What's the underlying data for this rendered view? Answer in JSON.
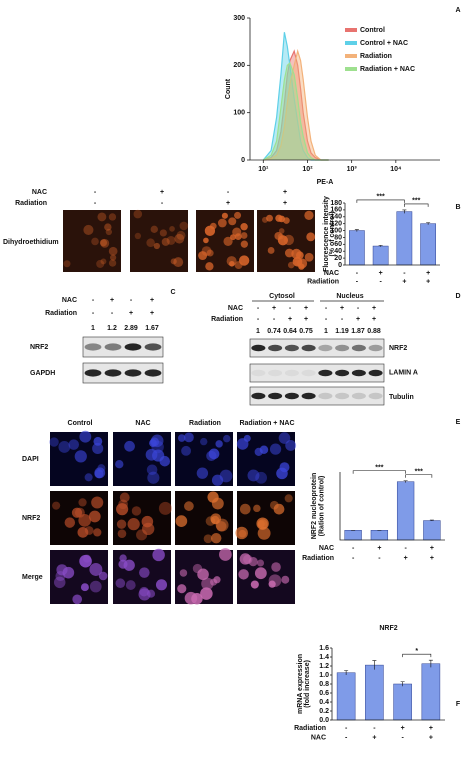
{
  "chart_data": [
    {
      "type": "area",
      "xlabel": "PE-A",
      "ylabel": "Count",
      "log_x": true,
      "x": [
        10,
        15,
        20,
        25,
        30,
        35,
        40,
        50,
        60,
        70,
        80,
        100,
        120,
        150,
        200,
        300
      ],
      "series": [
        {
          "name": "Control",
          "color": "#e8736f",
          "values": [
            0,
            5,
            20,
            60,
            120,
            180,
            210,
            230,
            200,
            150,
            100,
            40,
            15,
            5,
            0,
            0
          ]
        },
        {
          "name": "Control + NAC",
          "color": "#5ed0e8",
          "values": [
            0,
            20,
            90,
            180,
            270,
            240,
            200,
            130,
            80,
            40,
            20,
            5,
            0,
            0,
            0,
            0
          ]
        },
        {
          "name": "Radiation",
          "color": "#f3b27a",
          "values": [
            0,
            3,
            10,
            30,
            70,
            120,
            160,
            200,
            230,
            210,
            170,
            90,
            40,
            10,
            0,
            0
          ]
        },
        {
          "name": "Radiation + NAC",
          "color": "#9ee08f",
          "values": [
            0,
            10,
            40,
            110,
            170,
            200,
            205,
            180,
            130,
            80,
            50,
            15,
            5,
            0,
            0,
            0
          ]
        }
      ],
      "xlim": [
        5,
        100000
      ],
      "xticks": [
        {
          "value": 10,
          "label": "10¹"
        },
        {
          "value": 100,
          "label": "10²"
        },
        {
          "value": 1000,
          "label": "10³"
        },
        {
          "value": 10000,
          "label": "10⁴"
        }
      ],
      "ylim": [
        0,
        300
      ],
      "yticks": [
        0,
        100,
        200,
        300
      ],
      "legend": "upper right"
    },
    {
      "type": "bar",
      "ylabel": [
        "Fluorescence intensity",
        "(% of control)"
      ],
      "values": [
        100,
        55,
        155,
        120
      ],
      "errors": [
        3,
        2,
        5,
        3
      ],
      "color": "#7f9be8",
      "ylim": [
        0,
        180
      ],
      "yticks": [
        0,
        20,
        40,
        60,
        80,
        100,
        120,
        140,
        160,
        180
      ],
      "annotations": [
        "***",
        "***"
      ],
      "conditions": [
        {
          "label": "NAC",
          "values": [
            "-",
            "+",
            "-",
            "+"
          ]
        },
        {
          "label": "Radiation",
          "values": [
            "-",
            "-",
            "+",
            "+"
          ]
        }
      ]
    },
    {
      "type": "bar",
      "ylabel": [
        "NRF2 nucleoprotein",
        "(Ration of control)"
      ],
      "values": [
        1,
        1,
        6,
        2
      ],
      "errors": [
        0,
        0,
        0.1,
        0.05
      ],
      "color": "#7f9be8",
      "ylim": [
        0,
        7
      ],
      "annotations": [
        "***",
        "***"
      ],
      "conditions": [
        {
          "label": "NAC",
          "values": [
            "-",
            "+",
            "-",
            "+"
          ]
        },
        {
          "label": "Radiation",
          "values": [
            "-",
            "-",
            "+",
            "+"
          ]
        }
      ]
    },
    {
      "type": "bar",
      "title": "NRF2",
      "ylabel": [
        "mRNA expression",
        "(fold increase)"
      ],
      "values": [
        1.05,
        1.22,
        0.8,
        1.25
      ],
      "errors": [
        0.05,
        0.1,
        0.05,
        0.08
      ],
      "color": "#7f9be8",
      "ylim": [
        0,
        1.6
      ],
      "yticks": [
        {
          "value": 0,
          "label": "0.0"
        },
        0.2,
        0.4,
        0.6,
        0.8,
        {
          "value": 1,
          "label": "1.0"
        },
        1.2,
        1.4,
        1.6
      ],
      "annotations": [
        "*"
      ],
      "conditions": [
        {
          "label": "Radiation",
          "values": [
            "-",
            "-",
            "+",
            "+"
          ]
        },
        {
          "label": "NAC",
          "values": [
            "-",
            "+",
            "-",
            "+"
          ]
        }
      ]
    }
  ],
  "panels": {
    "letters": [
      "A",
      "B",
      "C",
      "D",
      "E",
      "F"
    ],
    "B": {
      "conditions": [
        {
          "label": "NAC",
          "values": [
            "-",
            "+",
            "-",
            "+"
          ]
        },
        {
          "label": "Radiation",
          "values": [
            "-",
            "-",
            "+",
            "+"
          ]
        }
      ],
      "image_label": "Dihydroethidium"
    },
    "C": {
      "conditions": [
        {
          "label": "NAC",
          "values": [
            "-",
            "+",
            "-",
            "+"
          ]
        },
        {
          "label": "Radiation",
          "values": [
            "-",
            "-",
            "+",
            "+"
          ]
        }
      ],
      "ratios": [
        1,
        1.2,
        2.89,
        1.67
      ],
      "blots": [
        "NRF2",
        "GAPDH"
      ]
    },
    "D": {
      "groups": [
        "Cytosol",
        "Nucleus"
      ],
      "conditions": [
        {
          "label": "NAC",
          "values": [
            "-",
            "+",
            "-",
            "+",
            "-",
            "+",
            "-",
            "+"
          ]
        },
        {
          "label": "Radiation",
          "values": [
            "-",
            "-",
            "+",
            "+",
            "-",
            "-",
            "+",
            "+"
          ]
        }
      ],
      "ratios": [
        1,
        0.74,
        0.64,
        0.75,
        1,
        1.19,
        1.87,
        0.88
      ],
      "blots": [
        "NRF2",
        "LAMIN A",
        "Tubulin"
      ]
    },
    "E": {
      "columns": [
        "Control",
        "NAC",
        "Radiation",
        "Radiation + NAC"
      ],
      "rows": [
        "DAPI",
        "NRF2",
        "Merge"
      ]
    }
  }
}
